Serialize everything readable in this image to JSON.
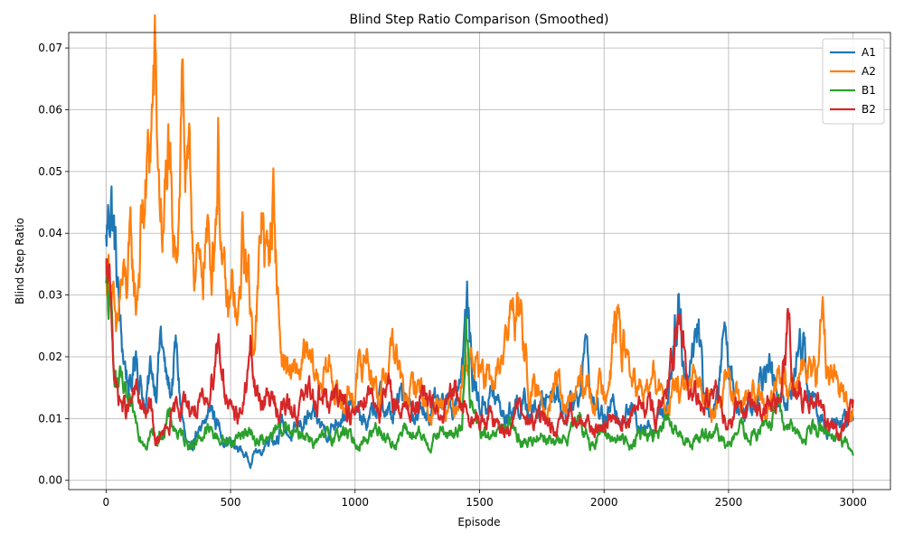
{
  "chart_data": {
    "type": "line",
    "title": "Blind Step Ratio Comparison (Smoothed)",
    "xlabel": "Episode",
    "ylabel": "Blind Step Ratio",
    "xlim": [
      -150,
      3150
    ],
    "ylim": [
      -0.0015,
      0.0725
    ],
    "xticks": [
      0,
      500,
      1000,
      1500,
      2000,
      2500,
      3000
    ],
    "yticks": [
      0.0,
      0.01,
      0.02,
      0.03,
      0.04,
      0.05,
      0.06,
      0.07
    ],
    "ytick_labels": [
      "0.00",
      "0.01",
      "0.02",
      "0.03",
      "0.04",
      "0.05",
      "0.06",
      "0.07"
    ],
    "grid": true,
    "legend_position": "top-right",
    "x_range": [
      0,
      3000
    ],
    "series": [
      {
        "name": "A1",
        "color": "#1f77b4",
        "x": [
          0,
          20,
          40,
          60,
          80,
          100,
          120,
          140,
          160,
          180,
          200,
          220,
          240,
          260,
          280,
          300,
          320,
          340,
          360,
          380,
          400,
          420,
          440,
          460,
          480,
          500,
          520,
          540,
          560,
          580,
          600,
          620,
          640,
          660,
          680,
          700,
          750,
          800,
          850,
          900,
          950,
          1000,
          1050,
          1100,
          1150,
          1200,
          1250,
          1300,
          1350,
          1400,
          1430,
          1450,
          1470,
          1500,
          1550,
          1600,
          1650,
          1700,
          1750,
          1800,
          1850,
          1900,
          1920,
          1950,
          2000,
          2050,
          2100,
          2150,
          2200,
          2250,
          2300,
          2310,
          2330,
          2360,
          2380,
          2400,
          2450,
          2480,
          2500,
          2550,
          2600,
          2650,
          2700,
          2750,
          2800,
          2820,
          2850,
          2900,
          2950,
          3000
        ],
        "values": [
          0.038,
          0.048,
          0.035,
          0.022,
          0.018,
          0.014,
          0.022,
          0.016,
          0.012,
          0.018,
          0.016,
          0.024,
          0.016,
          0.014,
          0.021,
          0.012,
          0.006,
          0.004,
          0.008,
          0.007,
          0.009,
          0.012,
          0.01,
          0.008,
          0.007,
          0.006,
          0.005,
          0.005,
          0.004,
          0.003,
          0.005,
          0.004,
          0.006,
          0.008,
          0.007,
          0.009,
          0.007,
          0.01,
          0.009,
          0.008,
          0.012,
          0.011,
          0.009,
          0.013,
          0.01,
          0.015,
          0.01,
          0.012,
          0.011,
          0.013,
          0.02,
          0.028,
          0.018,
          0.012,
          0.014,
          0.01,
          0.013,
          0.011,
          0.012,
          0.016,
          0.011,
          0.014,
          0.024,
          0.013,
          0.01,
          0.012,
          0.011,
          0.01,
          0.009,
          0.012,
          0.031,
          0.025,
          0.015,
          0.024,
          0.026,
          0.014,
          0.011,
          0.024,
          0.019,
          0.011,
          0.013,
          0.021,
          0.012,
          0.015,
          0.024,
          0.016,
          0.011,
          0.008,
          0.009,
          0.01
        ]
      },
      {
        "name": "A2",
        "color": "#ff7f0e",
        "x": [
          0,
          20,
          40,
          60,
          80,
          100,
          120,
          140,
          160,
          180,
          195,
          210,
          230,
          250,
          270,
          290,
          305,
          320,
          340,
          360,
          380,
          400,
          420,
          440,
          450,
          470,
          490,
          510,
          530,
          550,
          570,
          590,
          610,
          630,
          650,
          670,
          700,
          750,
          800,
          850,
          900,
          950,
          1000,
          1050,
          1100,
          1150,
          1200,
          1250,
          1300,
          1350,
          1400,
          1450,
          1500,
          1550,
          1600,
          1650,
          1700,
          1750,
          1800,
          1850,
          1900,
          1950,
          2000,
          2050,
          2100,
          2150,
          2200,
          2250,
          2300,
          2350,
          2400,
          2450,
          2500,
          2550,
          2600,
          2650,
          2700,
          2750,
          2800,
          2850,
          2880,
          2900,
          2950,
          3000
        ],
        "values": [
          0.034,
          0.035,
          0.02,
          0.031,
          0.03,
          0.036,
          0.028,
          0.04,
          0.046,
          0.055,
          0.066,
          0.048,
          0.04,
          0.052,
          0.031,
          0.045,
          0.069,
          0.05,
          0.042,
          0.036,
          0.03,
          0.04,
          0.035,
          0.045,
          0.056,
          0.032,
          0.025,
          0.03,
          0.023,
          0.04,
          0.032,
          0.024,
          0.03,
          0.044,
          0.033,
          0.048,
          0.022,
          0.016,
          0.019,
          0.016,
          0.018,
          0.012,
          0.015,
          0.021,
          0.013,
          0.023,
          0.012,
          0.016,
          0.011,
          0.014,
          0.012,
          0.021,
          0.018,
          0.014,
          0.022,
          0.03,
          0.015,
          0.012,
          0.016,
          0.011,
          0.015,
          0.014,
          0.015,
          0.026,
          0.018,
          0.013,
          0.016,
          0.012,
          0.015,
          0.014,
          0.016,
          0.013,
          0.015,
          0.012,
          0.014,
          0.01,
          0.017,
          0.015,
          0.019,
          0.016,
          0.027,
          0.018,
          0.015,
          0.011
        ]
      },
      {
        "name": "B1",
        "color": "#2ca02c",
        "x": [
          0,
          20,
          40,
          60,
          80,
          100,
          120,
          140,
          160,
          180,
          200,
          250,
          300,
          350,
          400,
          450,
          500,
          550,
          600,
          650,
          700,
          750,
          800,
          850,
          900,
          950,
          1000,
          1050,
          1100,
          1150,
          1200,
          1250,
          1300,
          1350,
          1400,
          1430,
          1445,
          1460,
          1500,
          1550,
          1600,
          1650,
          1700,
          1750,
          1800,
          1850,
          1900,
          1950,
          2000,
          2050,
          2100,
          2150,
          2200,
          2250,
          2300,
          2350,
          2400,
          2450,
          2500,
          2550,
          2600,
          2650,
          2700,
          2750,
          2800,
          2850,
          2900,
          2950,
          3000
        ],
        "values": [
          0.03,
          0.024,
          0.017,
          0.015,
          0.012,
          0.01,
          0.009,
          0.008,
          0.007,
          0.008,
          0.006,
          0.01,
          0.007,
          0.006,
          0.008,
          0.007,
          0.006,
          0.008,
          0.007,
          0.006,
          0.009,
          0.007,
          0.008,
          0.006,
          0.007,
          0.008,
          0.006,
          0.007,
          0.009,
          0.006,
          0.008,
          0.007,
          0.006,
          0.008,
          0.007,
          0.01,
          0.026,
          0.012,
          0.008,
          0.006,
          0.009,
          0.007,
          0.006,
          0.008,
          0.006,
          0.007,
          0.009,
          0.006,
          0.008,
          0.007,
          0.006,
          0.008,
          0.007,
          0.009,
          0.007,
          0.006,
          0.008,
          0.007,
          0.006,
          0.008,
          0.007,
          0.009,
          0.011,
          0.008,
          0.007,
          0.01,
          0.008,
          0.007,
          0.004
        ]
      },
      {
        "name": "B2",
        "color": "#d62728",
        "x": [
          0,
          20,
          40,
          60,
          80,
          100,
          120,
          140,
          160,
          180,
          200,
          250,
          300,
          350,
          400,
          450,
          500,
          550,
          580,
          600,
          650,
          700,
          750,
          800,
          850,
          900,
          950,
          1000,
          1050,
          1100,
          1150,
          1200,
          1250,
          1300,
          1350,
          1400,
          1450,
          1500,
          1550,
          1600,
          1650,
          1700,
          1750,
          1800,
          1850,
          1900,
          1950,
          2000,
          2050,
          2100,
          2150,
          2200,
          2250,
          2300,
          2350,
          2400,
          2450,
          2500,
          2550,
          2600,
          2650,
          2700,
          2730,
          2745,
          2760,
          2800,
          2850,
          2900,
          2950,
          3000
        ],
        "values": [
          0.031,
          0.028,
          0.015,
          0.013,
          0.011,
          0.012,
          0.014,
          0.012,
          0.01,
          0.012,
          0.006,
          0.008,
          0.013,
          0.012,
          0.011,
          0.024,
          0.01,
          0.012,
          0.02,
          0.014,
          0.013,
          0.012,
          0.011,
          0.013,
          0.015,
          0.012,
          0.014,
          0.01,
          0.016,
          0.012,
          0.014,
          0.011,
          0.013,
          0.012,
          0.01,
          0.014,
          0.011,
          0.009,
          0.01,
          0.008,
          0.011,
          0.009,
          0.01,
          0.008,
          0.009,
          0.01,
          0.008,
          0.009,
          0.011,
          0.01,
          0.012,
          0.011,
          0.013,
          0.024,
          0.013,
          0.012,
          0.014,
          0.011,
          0.013,
          0.012,
          0.011,
          0.012,
          0.02,
          0.034,
          0.016,
          0.013,
          0.011,
          0.01,
          0.008,
          0.013
        ]
      }
    ]
  }
}
